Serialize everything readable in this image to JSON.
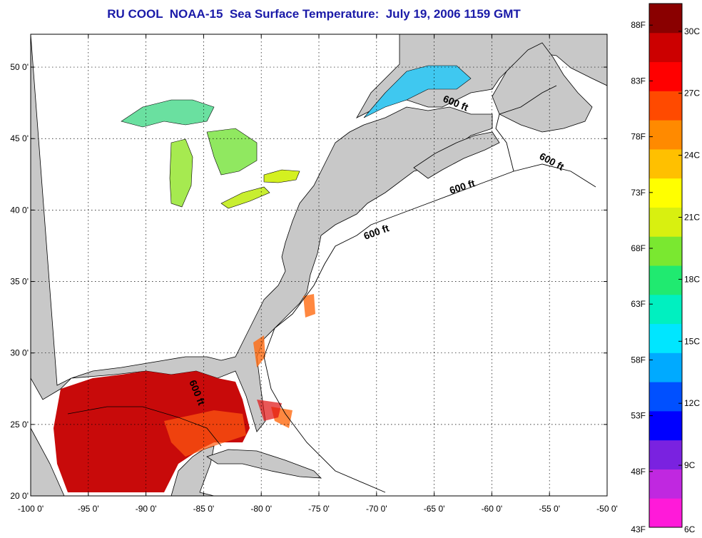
{
  "title": "RU COOL  NOAA-15  Sea Surface Temperature:  July 19, 2006 1159 GMT",
  "map": {
    "lon_range": [
      -100,
      -50
    ],
    "lat_range": [
      20,
      52.3
    ],
    "x_ticks": [
      "-100 0'",
      "-95 0'",
      "-90 0'",
      "-85 0'",
      "-80 0'",
      "-75 0'",
      "-70 0'",
      "-65 0'",
      "-60 0'",
      "-55 0'",
      "-50 0'"
    ],
    "y_ticks": [
      "20 0'",
      "25 0'",
      "30 0'",
      "35 0'",
      "40 0'",
      "45 0'",
      "50 0'"
    ],
    "grid": "dotted",
    "land_color": "#c8c8c8",
    "ocean_color": "#ffffff",
    "contour_labels": [
      "600 ft",
      "600 ft",
      "600 ft",
      "600 ft",
      "600 ft"
    ]
  },
  "colorbar": {
    "colors": [
      "#ff1ad9",
      "#c028e0",
      "#7a22e0",
      "#0000ff",
      "#0050ff",
      "#00aaff",
      "#00e6ff",
      "#00f0c0",
      "#20ea70",
      "#7ae830",
      "#d8f010",
      "#ffff00",
      "#ffc000",
      "#ff8a00",
      "#ff4a00",
      "#ff0000",
      "#cc0000",
      "#8a0000"
    ],
    "fahrenheit_labels": [
      "88F",
      "83F",
      "78F",
      "73F",
      "68F",
      "63F",
      "58F",
      "53F",
      "48F",
      "43F"
    ],
    "celsius_labels": [
      "30C",
      "27C",
      "24C",
      "21C",
      "18C",
      "15C",
      "12C",
      "9C",
      "6C"
    ]
  }
}
